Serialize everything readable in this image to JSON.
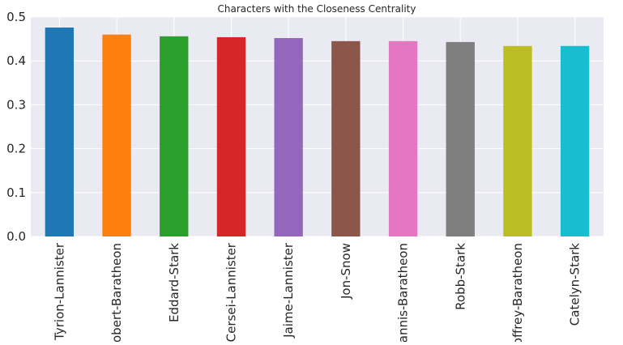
{
  "chart_data": {
    "type": "bar",
    "title": "Characters with the Closeness Centrality",
    "xlabel": "",
    "ylabel": "",
    "categories": [
      "Tyrion-Lannister",
      "Robert-Baratheon",
      "Eddard-Stark",
      "Cersei-Lannister",
      "Jaime-Lannister",
      "Jon-Snow",
      "Stannis-Baratheon",
      "Robb-Stark",
      "Joffrey-Baratheon",
      "Catelyn-Stark"
    ],
    "values": [
      0.476,
      0.46,
      0.456,
      0.454,
      0.452,
      0.445,
      0.445,
      0.443,
      0.434,
      0.434
    ],
    "colors": [
      "#1f77b4",
      "#ff7f0e",
      "#2ca02c",
      "#d62728",
      "#9467bd",
      "#8c564b",
      "#e377c2",
      "#7f7f7f",
      "#bcbd22",
      "#17becf"
    ],
    "ylim": [
      0,
      0.5
    ],
    "yticks": [
      "0.0",
      "0.1",
      "0.2",
      "0.3",
      "0.4",
      "0.5"
    ],
    "grid": true,
    "legend": "none",
    "background_color": "#eaeaf2",
    "grid_color": "#ffffff"
  }
}
